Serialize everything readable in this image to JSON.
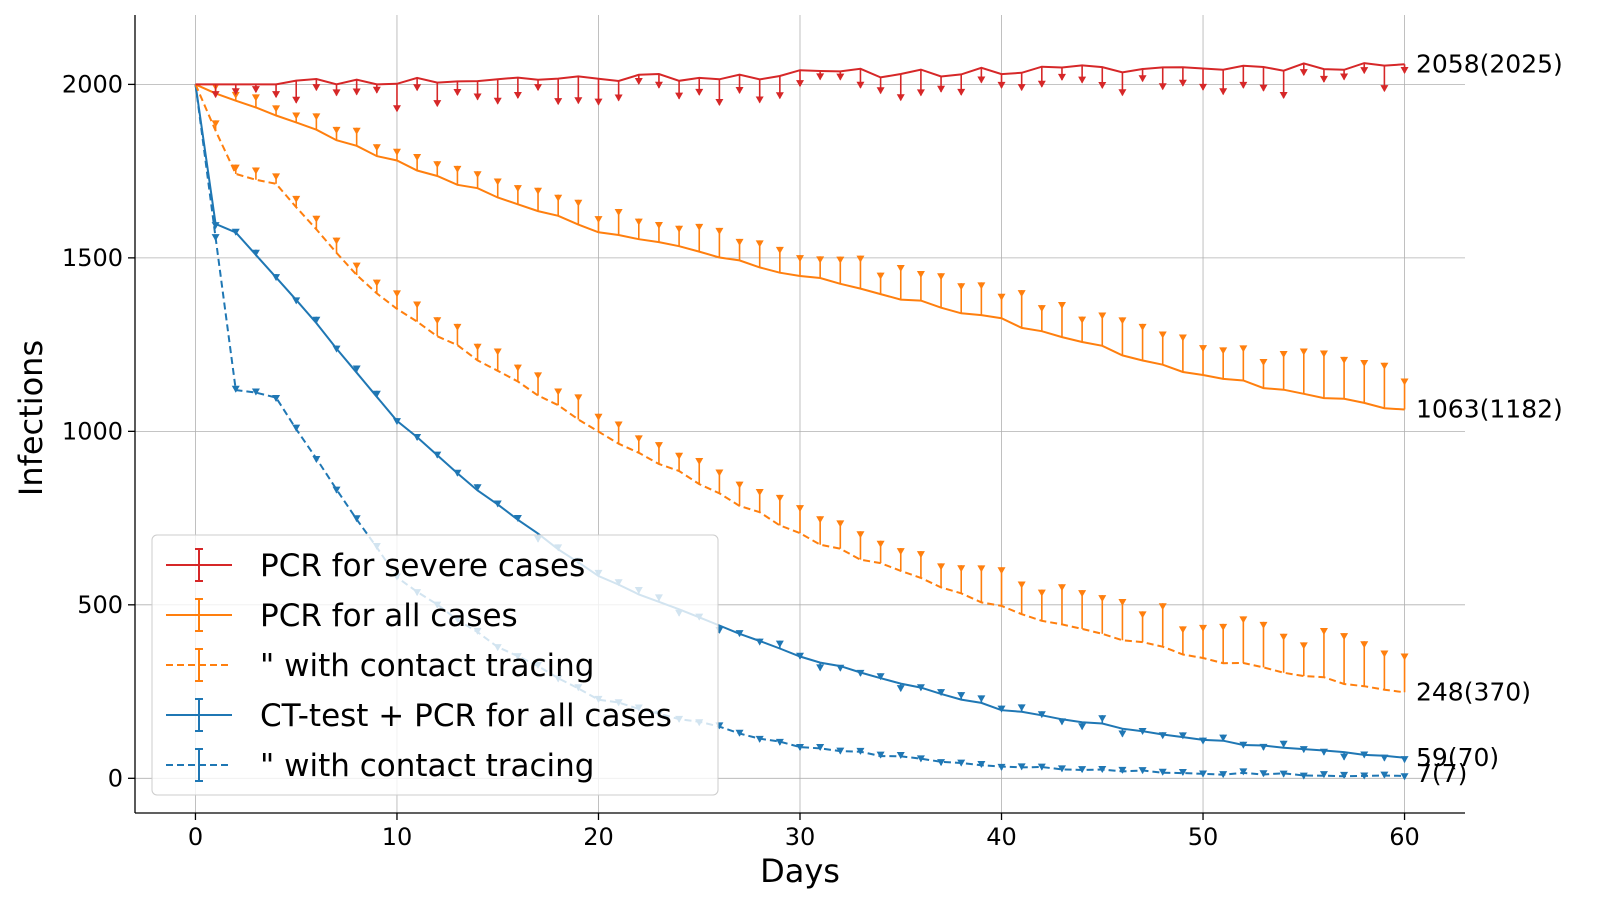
{
  "chart_data": {
    "type": "line",
    "xlabel": "Days",
    "ylabel": "Infections",
    "xlim": [
      -3,
      63
    ],
    "ylim": [
      -100,
      2200
    ],
    "xticks": [
      0,
      10,
      20,
      30,
      40,
      50,
      60
    ],
    "yticks": [
      0,
      500,
      1000,
      1500,
      2000
    ],
    "grid": true,
    "legend_position": "lower-left",
    "series": [
      {
        "name": "PCR for severe cases",
        "color": "#d62728",
        "dash": false,
        "x": [
          0,
          60
        ],
        "y": [
          2000,
          2058
        ],
        "err_min": 2000,
        "err_max": 2025,
        "err_dir": "down",
        "seed": 11,
        "end_label": "2058(2025)"
      },
      {
        "name": "PCR for all cases",
        "color": "#ff7f0e",
        "dash": false,
        "x": [
          0,
          10,
          20,
          30,
          40,
          50,
          60
        ],
        "y": [
          2000,
          1775,
          1580,
          1450,
          1320,
          1160,
          1063
        ],
        "err_min": 0,
        "err_max": 119,
        "err_dir": "up",
        "seed": 23,
        "end_label": "1063(1182)"
      },
      {
        "name": "\" with contact tracing",
        "color": "#ff7f0e",
        "dash": true,
        "x": [
          0,
          2,
          4,
          8,
          10,
          20,
          30,
          40,
          50,
          60
        ],
        "y": [
          2000,
          1740,
          1720,
          1450,
          1350,
          1000,
          700,
          490,
          345,
          248
        ],
        "err_min": 0,
        "err_max": 122,
        "err_dir": "up",
        "seed": 37,
        "end_label": "248(370)"
      },
      {
        "name": "CT-test + PCR for all cases",
        "color": "#1f77b4",
        "dash": false,
        "x": [
          0,
          1,
          2,
          5,
          10,
          14,
          20,
          25,
          30,
          40,
          50,
          60
        ],
        "y": [
          2000,
          1600,
          1570,
          1380,
          1030,
          830,
          580,
          460,
          350,
          200,
          110,
          59
        ],
        "err_min": 0,
        "err_max": 11,
        "err_dir": "mixed",
        "seed": 51,
        "end_label": "59(70)"
      },
      {
        "name": "\" with contact tracing",
        "color": "#1f77b4",
        "dash": true,
        "x": [
          0,
          1,
          2,
          4,
          6,
          8,
          10,
          15,
          20,
          25,
          30,
          40,
          50,
          60
        ],
        "y": [
          2000,
          1560,
          1120,
          1100,
          920,
          750,
          580,
          380,
          230,
          160,
          90,
          35,
          15,
          7
        ],
        "err_min": 0,
        "err_max": 0,
        "err_dir": "down",
        "seed": 67,
        "end_label": "7(7)"
      }
    ]
  }
}
